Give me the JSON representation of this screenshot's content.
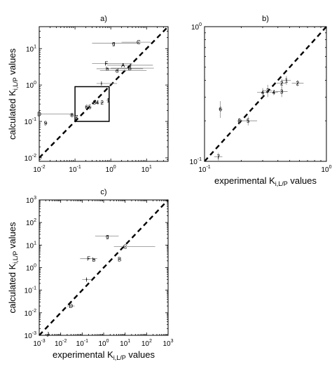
{
  "chart_data": [
    {
      "id": "a",
      "type": "scatter",
      "title": "a)",
      "xscale": "log",
      "yscale": "log",
      "xlim": [
        0.01,
        40
      ],
      "ylim": [
        0.008,
        40
      ],
      "xticks": [
        {
          "base": "10",
          "exp": "-2",
          "v": 0.01
        },
        {
          "base": "10",
          "exp": "-1",
          "v": 0.1
        },
        {
          "base": "10",
          "exp": "0",
          "v": 1
        },
        {
          "base": "10",
          "exp": "1",
          "v": 10
        }
      ],
      "yticks": [
        {
          "base": "10",
          "exp": "-2",
          "v": 0.01
        },
        {
          "base": "10",
          "exp": "-1",
          "v": 0.1
        },
        {
          "base": "10",
          "exp": "0",
          "v": 1
        },
        {
          "base": "10",
          "exp": "1",
          "v": 10
        }
      ],
      "xlabel": {
        "main": "",
        "sub": ""
      },
      "ylabel": {
        "main": "calculated K",
        "sub": "i,L/P",
        "suffix": " values"
      },
      "identity_line": true,
      "zoom_box": {
        "x": [
          0.1,
          0.9
        ],
        "y": [
          0.1,
          0.9
        ]
      },
      "points": [
        {
          "label": "g",
          "x": 1.2,
          "y": 14,
          "xerr": [
            0.3,
            6
          ]
        },
        {
          "label": "C",
          "x": 6,
          "y": 15,
          "xerr": [
            2,
            13
          ]
        },
        {
          "label": "F",
          "x": 0.75,
          "y": 3.9,
          "xerr": [
            0.3,
            4
          ]
        },
        {
          "label": "A",
          "x": 2.2,
          "y": 3.5,
          "xerr": [
            0.8,
            15
          ]
        },
        {
          "label": "b",
          "x": 0.8,
          "y": 2.8,
          "xerr": [
            0.4,
            8
          ]
        },
        {
          "label": "B",
          "x": 3.4,
          "y": 2.9,
          "xerr": [
            1,
            16
          ]
        },
        {
          "label": "d",
          "x": 1.5,
          "y": 2.5,
          "xerr": [
            0.5,
            10
          ]
        },
        {
          "label": "I",
          "x": 0.55,
          "y": 1.1,
          "xerr": [
            0.4,
            1.5
          ]
        },
        {
          "label": "D",
          "x": 0.01,
          "y": 0.16,
          "xerr": [
            0.01,
            0.09
          ]
        },
        {
          "label": "8",
          "x": 0.082,
          "y": 0.15,
          "xerr": [
            0.07,
            0.095
          ]
        },
        {
          "label": "9",
          "x": 0.015,
          "y": 0.09,
          "xerr": [
            0.014,
            0.017
          ]
        },
        {
          "label": "7",
          "x": 0.11,
          "y": 0.13,
          "xerr": [
            0.1,
            0.12
          ]
        },
        {
          "label": "6",
          "x": 0.21,
          "y": 0.25,
          "xerr": [
            0.19,
            0.24
          ]
        },
        {
          "label": "5",
          "x": 0.26,
          "y": 0.25,
          "xerr": [
            0.23,
            0.29
          ]
        },
        {
          "label": "3",
          "x": 0.35,
          "y": 0.33,
          "xerr": [
            0.3,
            0.4
          ]
        },
        {
          "label": "4",
          "x": 0.42,
          "y": 0.33,
          "xerr": [
            0.37,
            0.47
          ]
        },
        {
          "label": "2",
          "x": 0.57,
          "y": 0.33,
          "xerr": [
            0.5,
            0.65
          ]
        },
        {
          "label": "1",
          "x": 0.85,
          "y": 0.38,
          "xerr": [
            0.75,
            0.95
          ]
        }
      ]
    },
    {
      "id": "b",
      "type": "scatter",
      "title": "b)",
      "xscale": "log",
      "yscale": "log",
      "xlim": [
        0.1,
        1
      ],
      "ylim": [
        0.1,
        1
      ],
      "xticks": [
        {
          "base": "10",
          "exp": "-1",
          "v": 0.1
        },
        {
          "base": "10",
          "exp": "0",
          "v": 1
        }
      ],
      "yticks": [
        {
          "base": "10",
          "exp": "-1",
          "v": 0.1
        },
        {
          "base": "10",
          "exp": "0",
          "v": 1
        }
      ],
      "xlabel": {
        "main": "experimental K",
        "sub": "i,L/P",
        "suffix": " values"
      },
      "ylabel": {
        "main": "",
        "sub": ""
      },
      "identity_line": true,
      "points": [
        {
          "label": "6",
          "x": 0.135,
          "y": 0.245,
          "xerr": [
            0.13,
            0.14
          ],
          "yerr": [
            0.21,
            0.28
          ]
        },
        {
          "label": "8",
          "x": 0.193,
          "y": 0.2,
          "xerr": [
            0.185,
            0.205
          ],
          "yerr": [
            0.19,
            0.21
          ]
        },
        {
          "label": "5",
          "x": 0.228,
          "y": 0.2,
          "xerr": [
            0.19,
            0.27
          ],
          "yerr": [
            0.185,
            0.215
          ]
        },
        {
          "label": "4",
          "x": 0.3,
          "y": 0.325,
          "xerr": [
            0.27,
            0.33
          ],
          "yerr": [
            0.3,
            0.35
          ]
        },
        {
          "label": "3",
          "x": 0.33,
          "y": 0.335,
          "xerr": [
            0.3,
            0.36
          ],
          "yerr": [
            0.3,
            0.37
          ]
        },
        {
          "label": "4",
          "x": 0.37,
          "y": 0.325,
          "xerr": [
            0.34,
            0.4
          ],
          "yerr": [
            0.31,
            0.34
          ]
        },
        {
          "label": "3",
          "x": 0.43,
          "y": 0.33,
          "xerr": [
            0.38,
            0.48
          ],
          "yerr": [
            0.3,
            0.36
          ]
        },
        {
          "label": "2",
          "x": 0.43,
          "y": 0.38,
          "xerr": [
            0.39,
            0.47
          ],
          "yerr": [
            0.35,
            0.41
          ]
        },
        {
          "label": "1",
          "x": 0.47,
          "y": 0.4,
          "xerr": [
            0.43,
            0.51
          ],
          "yerr": [
            0.37,
            0.43
          ]
        },
        {
          "label": "2",
          "x": 0.58,
          "y": 0.38,
          "xerr": [
            0.52,
            0.65
          ],
          "yerr": [
            0.36,
            0.4
          ]
        },
        {
          "label": "7",
          "x": 0.13,
          "y": 0.108,
          "xerr": [
            0.12,
            0.14
          ],
          "yerr": [
            0.1,
            0.116
          ]
        }
      ]
    },
    {
      "id": "c",
      "type": "scatter",
      "title": "c)",
      "xscale": "log",
      "yscale": "log",
      "xlim": [
        0.001,
        1000
      ],
      "ylim": [
        0.001,
        1000
      ],
      "xticks": [
        {
          "base": "10",
          "exp": "-3",
          "v": 0.001
        },
        {
          "base": "10",
          "exp": "-2",
          "v": 0.01
        },
        {
          "base": "10",
          "exp": "-1",
          "v": 0.1
        },
        {
          "base": "10",
          "exp": "0",
          "v": 1
        },
        {
          "base": "10",
          "exp": "1",
          "v": 10
        },
        {
          "base": "10",
          "exp": "2",
          "v": 100
        },
        {
          "base": "10",
          "exp": "3",
          "v": 1000
        }
      ],
      "yticks": [
        {
          "base": "10",
          "exp": "-3",
          "v": 0.001
        },
        {
          "base": "10",
          "exp": "-2",
          "v": 0.01
        },
        {
          "base": "10",
          "exp": "-1",
          "v": 0.1
        },
        {
          "base": "10",
          "exp": "0",
          "v": 1
        },
        {
          "base": "10",
          "exp": "1",
          "v": 10
        },
        {
          "base": "10",
          "exp": "2",
          "v": 100
        },
        {
          "base": "10",
          "exp": "3",
          "v": 1000
        }
      ],
      "xlabel": {
        "main": "experimental K",
        "sub": "i,L/P",
        "suffix": " values"
      },
      "ylabel": {
        "main": "calculated K",
        "sub": "i,L/P",
        "suffix": " values"
      },
      "identity_line": true,
      "points": [
        {
          "label": "g",
          "x": 1.5,
          "y": 25,
          "xerr": [
            0.4,
            5
          ]
        },
        {
          "label": "C",
          "x": 10,
          "y": 8.5,
          "xerr": [
            3,
            250
          ]
        },
        {
          "label": "F",
          "x": 0.2,
          "y": 2.5,
          "xerr": [
            0.08,
            0.5
          ]
        },
        {
          "label": "b",
          "x": 0.35,
          "y": 2.3,
          "xerr": [
            0.3,
            0.4
          ]
        },
        {
          "label": "B",
          "x": 5.5,
          "y": 2.4,
          "xerr": [
            5,
            6
          ]
        },
        {
          "label": "I",
          "x": 0.16,
          "y": 0.3,
          "xerr": [
            0.1,
            0.28
          ]
        },
        {
          "label": "D",
          "x": 0.03,
          "y": 0.02,
          "xerr": [
            0.02,
            0.045
          ]
        },
        {
          "label": "J",
          "x": 0.0025,
          "y": 0.0011,
          "xerr": [
            0.002,
            0.003
          ]
        }
      ]
    }
  ]
}
